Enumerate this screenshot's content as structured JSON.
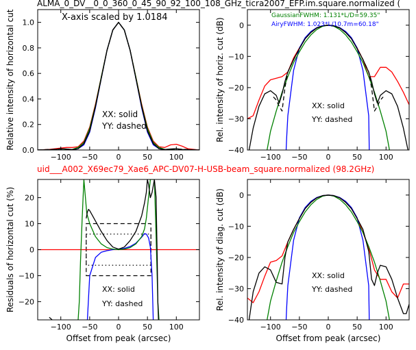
{
  "figure": {
    "title": "ALMA_0_DV__0_0_360_0_45_90_92_100_108_GHz_ticra2007_EFP.im.square.normalized (",
    "subtitle": "uid___A002_X69ec79_Xae6_APC-DV07-H-USB-beam_square.normalized (98.2GHz)",
    "title_color": "#000000",
    "subtitle_color": "#ff0000"
  },
  "chart_data": [
    {
      "type": "line",
      "panel": "top-left",
      "ylabel": "Relative intensity of horizontal cut",
      "xlabel": "",
      "xlim": [
        -140,
        140
      ],
      "ylim": [
        0,
        1.1
      ],
      "xticks": [
        -100,
        -50,
        0,
        50,
        100
      ],
      "yticks": [
        0.0,
        0.2,
        0.4,
        0.6,
        0.8,
        1.0
      ],
      "annotations": [
        "X-axis scaled by 1.0184",
        "XX: solid",
        "YY: dashed"
      ],
      "series": [
        {
          "color": "#ff0000",
          "style": "solid",
          "x": [
            -140,
            -120,
            -100,
            -90,
            -80,
            -70,
            -60,
            -50,
            -40,
            -30,
            -20,
            -10,
            0,
            10,
            20,
            30,
            40,
            50,
            60,
            70,
            80,
            90,
            100,
            110,
            120,
            140
          ],
          "y": [
            0.0,
            0.005,
            0.015,
            0.02,
            0.02,
            0.025,
            0.07,
            0.18,
            0.36,
            0.57,
            0.78,
            0.94,
            1.0,
            0.94,
            0.78,
            0.57,
            0.36,
            0.18,
            0.07,
            0.025,
            0.02,
            0.04,
            0.045,
            0.03,
            0.01,
            0.0
          ]
        },
        {
          "color": "#0000ff",
          "style": "solid",
          "x": [
            -140,
            -100,
            -80,
            -70,
            -60,
            -50,
            -40,
            -30,
            -20,
            -10,
            0,
            10,
            20,
            30,
            40,
            50,
            60,
            70,
            80,
            100,
            140
          ],
          "y": [
            0.0,
            0.0,
            0.0,
            0.01,
            0.04,
            0.14,
            0.33,
            0.56,
            0.78,
            0.94,
            1.0,
            0.94,
            0.78,
            0.56,
            0.33,
            0.14,
            0.04,
            0.01,
            0.0,
            0.0,
            0.0
          ]
        },
        {
          "color": "#008000",
          "style": "solid",
          "x": [
            -140,
            -100,
            -80,
            -70,
            -60,
            -50,
            -40,
            -30,
            -20,
            -10,
            0,
            10,
            20,
            30,
            40,
            50,
            60,
            70,
            80,
            100,
            140
          ],
          "y": [
            0.0,
            0.0,
            0.005,
            0.02,
            0.06,
            0.17,
            0.35,
            0.57,
            0.78,
            0.94,
            1.0,
            0.94,
            0.78,
            0.57,
            0.35,
            0.17,
            0.06,
            0.02,
            0.005,
            0.0,
            0.0
          ]
        },
        {
          "color": "#000000",
          "style": "solid",
          "x": [
            -140,
            -110,
            -100,
            -90,
            -80,
            -70,
            -60,
            -50,
            -40,
            -30,
            -20,
            -10,
            0,
            10,
            20,
            30,
            40,
            50,
            60,
            70,
            80,
            90,
            100,
            110,
            140
          ],
          "y": [
            0.0,
            0.005,
            0.01,
            0.008,
            0.004,
            0.01,
            0.05,
            0.15,
            0.34,
            0.56,
            0.78,
            0.94,
            1.0,
            0.94,
            0.78,
            0.56,
            0.34,
            0.15,
            0.05,
            0.01,
            0.004,
            0.008,
            0.01,
            0.005,
            0.0
          ]
        },
        {
          "color": "#000000",
          "style": "dashed",
          "x": [
            -140,
            -100,
            -80,
            -70,
            -60,
            -50,
            -40,
            -30,
            -20,
            -10,
            0,
            10,
            20,
            30,
            40,
            50,
            60,
            70,
            80,
            100,
            140
          ],
          "y": [
            0.0,
            0.008,
            0.004,
            0.01,
            0.05,
            0.15,
            0.34,
            0.56,
            0.78,
            0.94,
            1.0,
            0.94,
            0.78,
            0.56,
            0.34,
            0.15,
            0.05,
            0.01,
            0.004,
            0.008,
            0.0
          ]
        }
      ]
    },
    {
      "type": "line",
      "panel": "top-right",
      "ylabel": "Rel. intensity of horiz. cut (dB)",
      "xlabel": "",
      "xlim": [
        -140,
        140
      ],
      "ylim": [
        -40,
        5
      ],
      "xticks": [
        -100,
        -50,
        0,
        50,
        100
      ],
      "yticks": [
        -40,
        -30,
        -20,
        -10,
        0
      ],
      "annotations": [
        "GaussianFWHM: 1.131*L/D=59.35\"",
        "AiryFWHM: 1.023*L/10.7m=60.18\"",
        "XX: solid",
        "YY: dashed"
      ],
      "annotation_colors": [
        "#008000",
        "#0000ff",
        "#000000",
        "#000000"
      ],
      "series": [
        {
          "color": "#ff0000",
          "style": "solid",
          "x": [
            -140,
            -130,
            -120,
            -110,
            -100,
            -90,
            -80,
            -70,
            -60,
            -50,
            -40,
            -30,
            -20,
            -10,
            0,
            10,
            20,
            30,
            40,
            50,
            60,
            70,
            80,
            90,
            100,
            110,
            120,
            130,
            140
          ],
          "y": [
            -30,
            -29,
            -24,
            -19.5,
            -17.5,
            -17,
            -16.5,
            -15,
            -10.5,
            -7.3,
            -4.3,
            -2.3,
            -0.9,
            -0.2,
            0,
            -0.2,
            -0.9,
            -2.3,
            -4.3,
            -7.3,
            -11,
            -16.5,
            -16.5,
            -13.5,
            -13.5,
            -15,
            -18,
            -21.5,
            -25.5
          ]
        },
        {
          "color": "#0000ff",
          "style": "solid",
          "x": [
            -73,
            -72,
            -70,
            -60,
            -50,
            -40,
            -30,
            -20,
            -10,
            0,
            10,
            20,
            30,
            40,
            50,
            60,
            70,
            71
          ],
          "y": [
            -40,
            -36,
            -29,
            -14.5,
            -7.3,
            -4.0,
            -2.0,
            -0.8,
            -0.2,
            0,
            -0.2,
            -0.8,
            -2.0,
            -4.0,
            -7.3,
            -14.5,
            -29,
            -40
          ]
        },
        {
          "color": "#008000",
          "style": "solid",
          "x": [
            -106,
            -100,
            -90,
            -80,
            -70,
            -60,
            -50,
            -40,
            -30,
            -20,
            -10,
            0,
            10,
            20,
            30,
            40,
            50,
            60,
            70,
            80,
            90,
            100,
            106
          ],
          "y": [
            -40,
            -34,
            -27.5,
            -21.5,
            -16.5,
            -12,
            -8.5,
            -5.4,
            -3.1,
            -1.4,
            -0.35,
            0,
            -0.35,
            -1.4,
            -3.1,
            -5.4,
            -8.5,
            -12,
            -16.5,
            -21.5,
            -27.5,
            -34,
            -40
          ]
        },
        {
          "color": "#000000",
          "style": "solid",
          "x": [
            -137,
            -130,
            -120,
            -110,
            -100,
            -90,
            -85,
            -80,
            -75,
            -70,
            -60,
            -50,
            -40,
            -30,
            -20,
            -10,
            0,
            10,
            20,
            30,
            40,
            50,
            60,
            70,
            75,
            80,
            85,
            90,
            100,
            110,
            120,
            130,
            138
          ],
          "y": [
            -40,
            -33,
            -26,
            -22,
            -21,
            -22.5,
            -25,
            -22,
            -18,
            -15,
            -11,
            -7.5,
            -4.3,
            -2.3,
            -0.9,
            -0.2,
            0,
            -0.2,
            -0.9,
            -2.3,
            -4.3,
            -7.5,
            -11,
            -15,
            -18,
            -22,
            -25,
            -22.5,
            -21,
            -22,
            -26,
            -33,
            -40
          ]
        },
        {
          "color": "#000000",
          "style": "dashed",
          "x": [
            -95,
            -90,
            -85,
            -80,
            -75,
            -70,
            -60,
            -50,
            -40,
            -30,
            -20,
            -10,
            0,
            10,
            20,
            30,
            40,
            50,
            60,
            70,
            75,
            80,
            85,
            90,
            95
          ],
          "y": [
            -23,
            -24,
            -26,
            -27.5,
            -20,
            -15,
            -11,
            -7.5,
            -4.3,
            -2.3,
            -0.9,
            -0.2,
            0,
            -0.2,
            -0.9,
            -2.3,
            -4.3,
            -7.5,
            -11,
            -15,
            -20,
            -27.5,
            -26,
            -24,
            -23
          ]
        }
      ]
    },
    {
      "type": "line",
      "panel": "bottom-left",
      "ylabel": "Residuals of horizontal cut (%)",
      "xlabel": "Offset from peak (arcsec)",
      "xlim": [
        -140,
        140
      ],
      "ylim": [
        -27,
        27
      ],
      "xticks": [
        -100,
        -50,
        0,
        50,
        100
      ],
      "yticks": [
        -20,
        -10,
        0,
        10,
        20
      ],
      "annotations": [
        "XX: solid",
        "YY: dashed"
      ],
      "series": [
        {
          "color": "#ff0000",
          "style": "solid",
          "x": [
            -140,
            140
          ],
          "y": [
            0,
            0
          ]
        },
        {
          "color": "#0000ff",
          "style": "solid",
          "x": [
            -54,
            -50,
            -40,
            -30,
            -20,
            -10,
            0,
            10,
            20,
            30,
            40,
            45,
            48,
            52,
            55,
            58,
            60
          ],
          "y": [
            -27,
            -10,
            -3,
            -1,
            -0.4,
            0,
            0.2,
            0.5,
            1.2,
            2.5,
            4.8,
            6.2,
            6.0,
            4.5,
            1,
            -10,
            -27
          ]
        },
        {
          "color": "#008000",
          "style": "solid",
          "x": [
            -70,
            -68,
            -66,
            -63,
            -60,
            -55,
            -50,
            -40,
            -30,
            -20,
            -10,
            0,
            10,
            20,
            30,
            40,
            45,
            48,
            55,
            62,
            65,
            68,
            70
          ],
          "y": [
            -27,
            -20,
            -5,
            12,
            27,
            14,
            10,
            5,
            2.2,
            0.8,
            0.2,
            0,
            0.2,
            0.8,
            2.2,
            5,
            8,
            12,
            27,
            27,
            5,
            -20,
            -27
          ]
        },
        {
          "color": "#000000",
          "style": "solid",
          "x": [
            -56,
            -54,
            -52,
            -50,
            -45,
            -40,
            -30,
            -20,
            -10,
            0,
            10,
            20,
            30,
            40,
            45,
            48,
            50,
            52,
            55,
            58,
            62,
            65,
            67,
            68,
            69
          ],
          "y": [
            12,
            14.5,
            15.5,
            15,
            13,
            11,
            7,
            3.5,
            1,
            0.2,
            1,
            3.5,
            7,
            13,
            18,
            22,
            27,
            25,
            20,
            22,
            27,
            20,
            -5,
            -20,
            -27
          ]
        },
        {
          "color": "#000000",
          "style": "dashed",
          "x": [
            -120,
            -115
          ],
          "y": [
            -26,
            -27
          ]
        }
      ],
      "reference_boxes": [
        {
          "style": "dashed",
          "x": [
            -56,
            56
          ],
          "y": [
            -10,
            10
          ]
        },
        {
          "style": "dotted",
          "x": [
            -56,
            56
          ],
          "y": [
            -6,
            6
          ]
        }
      ]
    },
    {
      "type": "line",
      "panel": "bottom-right",
      "ylabel": "Rel. intensity of diag. cut (dB)",
      "xlabel": "Offset from peak (arcsec)",
      "xlim": [
        -140,
        140
      ],
      "ylim": [
        -40,
        5
      ],
      "xticks": [
        -100,
        -50,
        0,
        50,
        100
      ],
      "yticks": [
        -40,
        -30,
        -20,
        -10,
        0
      ],
      "annotations": [
        "XX: solid",
        "YY: dashed"
      ],
      "series": [
        {
          "color": "#ff0000",
          "style": "solid",
          "x": [
            -140,
            -130,
            -120,
            -110,
            -100,
            -90,
            -80,
            -70,
            -60,
            -50,
            -40,
            -30,
            -20,
            -10,
            0,
            10,
            20,
            30,
            40,
            50,
            60,
            70,
            80,
            90,
            100,
            110,
            120,
            130,
            140
          ],
          "y": [
            -33,
            -34.5,
            -31,
            -26,
            -21.5,
            -21,
            -19.5,
            -15,
            -11,
            -7.5,
            -4.3,
            -2.3,
            -0.9,
            -0.2,
            0,
            -0.2,
            -0.9,
            -2.3,
            -4.3,
            -7.5,
            -12,
            -17,
            -24,
            -27,
            -27,
            -31,
            -33,
            -28.5,
            -28.5
          ]
        },
        {
          "color": "#0000ff",
          "style": "solid",
          "x": [
            -73,
            -72,
            -70,
            -60,
            -50,
            -40,
            -30,
            -20,
            -10,
            0,
            10,
            20,
            30,
            40,
            50,
            60,
            70,
            71
          ],
          "y": [
            -40,
            -36,
            -29,
            -14.5,
            -7.3,
            -4.0,
            -2.0,
            -0.8,
            -0.2,
            0,
            -0.2,
            -0.8,
            -2.0,
            -4.0,
            -7.3,
            -14.5,
            -29,
            -40
          ]
        },
        {
          "color": "#008000",
          "style": "solid",
          "x": [
            -106,
            -100,
            -90,
            -80,
            -70,
            -60,
            -50,
            -40,
            -30,
            -20,
            -10,
            0,
            10,
            20,
            30,
            40,
            50,
            60,
            70,
            80,
            90,
            100,
            106
          ],
          "y": [
            -40,
            -34,
            -27.5,
            -21.5,
            -16.5,
            -12,
            -8.5,
            -5.4,
            -3.1,
            -1.4,
            -0.35,
            0,
            -0.35,
            -1.4,
            -3.1,
            -5.4,
            -8.5,
            -12,
            -16.5,
            -21.5,
            -27.5,
            -34,
            -40
          ]
        },
        {
          "color": "#000000",
          "style": "solid",
          "x": [
            -137,
            -130,
            -120,
            -110,
            -100,
            -90,
            -80,
            -75,
            -70,
            -60,
            -50,
            -40,
            -30,
            -20,
            -10,
            0,
            10,
            20,
            30,
            40,
            50,
            60,
            70,
            75,
            80,
            85,
            90,
            100,
            110,
            120,
            130,
            135,
            140
          ],
          "y": [
            -40,
            -31,
            -25,
            -23,
            -24,
            -28,
            -28.5,
            -20,
            -15,
            -11,
            -7.5,
            -4.3,
            -2.3,
            -0.9,
            -0.2,
            0,
            -0.2,
            -0.9,
            -2.3,
            -4.3,
            -7.5,
            -11,
            -18,
            -27,
            -29,
            -25,
            -22.5,
            -23,
            -27,
            -33,
            -38,
            -38,
            -35
          ]
        }
      ]
    }
  ]
}
